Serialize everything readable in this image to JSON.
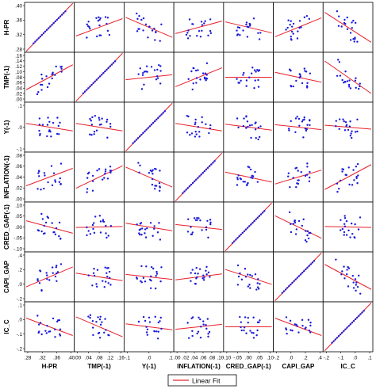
{
  "chart_data": {
    "type": "scatter-matrix",
    "variables": [
      "H-PR",
      "TMP(-1)",
      "Y(-1)",
      "INFLATION(-1)",
      "CRED_GAP(-1)",
      "CAPI_GAP",
      "IC_C"
    ],
    "axis_ranges": [
      [
        0.28,
        0.4
      ],
      [
        0.0,
        0.16
      ],
      [
        -0.1,
        0.15
      ],
      [
        0.0,
        0.1
      ],
      [
        -0.1,
        0.1
      ],
      [
        -0.2,
        0.4
      ],
      [
        -0.2,
        0.15
      ]
    ],
    "bottom_ticks": [
      [
        ".28",
        ".32",
        ".36",
        ".40"
      ],
      [
        ".00",
        ".04",
        ".08",
        ".12",
        ".16"
      ],
      [
        "-.1",
        ".0",
        ".1"
      ],
      [
        ".00",
        ".02",
        ".04",
        ".06",
        ".08",
        ".10"
      ],
      [
        "-.10",
        "-.05",
        ".00",
        ".05",
        ".10"
      ],
      [
        "-.2",
        ".0",
        ".2",
        ".4"
      ],
      [
        "-.2",
        "-.1",
        ".0",
        ".1"
      ]
    ],
    "left_ticks": [
      [
        ".28",
        ".32",
        ".36",
        ".40"
      ],
      [
        ".00",
        ".02",
        ".04",
        ".06",
        ".08",
        ".10",
        ".12",
        ".14",
        ".16"
      ],
      [
        "-.1",
        ".0",
        ".1"
      ],
      [
        ".00",
        ".02",
        ".04",
        ".06",
        ".08"
      ],
      [
        "-.10",
        "-.05",
        ".00",
        ".05",
        ".10"
      ],
      [
        "-.2",
        ".0",
        ".2",
        ".4"
      ],
      [
        "-.2",
        "-.1",
        ".0",
        ".1"
      ]
    ],
    "slopes": [
      [
        1.0,
        0.35,
        -0.4,
        0.25,
        -0.22,
        0.38,
        -0.6
      ],
      [
        0.5,
        1.0,
        0.1,
        0.38,
        0.0,
        -0.2,
        -0.65
      ],
      [
        -0.15,
        -0.15,
        1.0,
        -0.15,
        -0.12,
        -0.1,
        -0.08
      ],
      [
        0.35,
        0.45,
        -0.4,
        1.0,
        -0.2,
        0.28,
        0.5
      ],
      [
        -0.25,
        0.02,
        -0.15,
        -0.1,
        1.0,
        -0.45,
        -0.02
      ],
      [
        0.4,
        -0.15,
        -0.1,
        0.12,
        -0.3,
        1.0,
        -0.5
      ],
      [
        -0.35,
        -0.4,
        -0.12,
        0.1,
        0.0,
        -0.35,
        1.0
      ]
    ],
    "xlabel": "",
    "ylabel": "",
    "grid": false,
    "marker_color": "#1a1adb",
    "line_color": "#e8202a",
    "legend": {
      "placement": "bottom-center",
      "entries": [
        "Linear Fit"
      ]
    }
  }
}
